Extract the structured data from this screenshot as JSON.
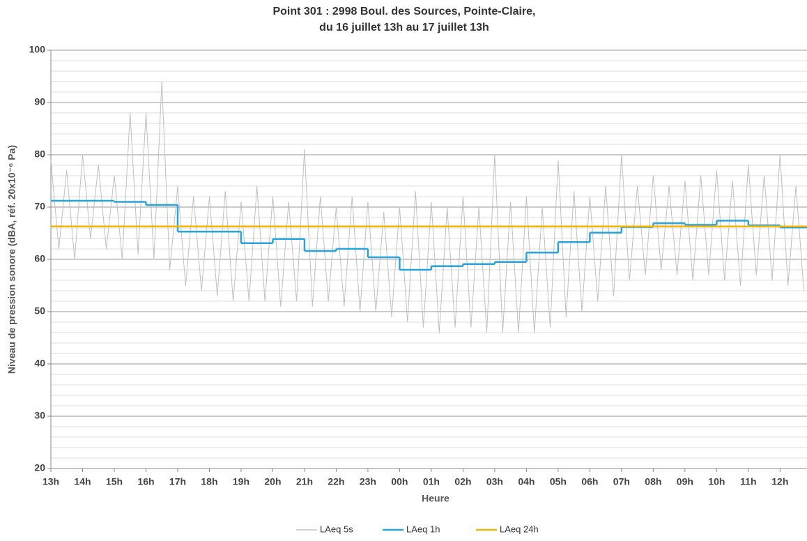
{
  "chart_data": {
    "type": "line",
    "title": "Point 301 : 2998 Boul. des Sources, Pointe-Claire,",
    "subtitle": "du 16 juillet 13h au 17 juillet 13h",
    "x_label": "Heure",
    "y_label": "Niveau de pression sonore (dBA, réf. 20x10⁻⁶ Pa)",
    "xlim": [
      0,
      23.85
    ],
    "xticks": [
      {
        "value": 0,
        "label": "13h"
      },
      {
        "value": 1,
        "label": "14h"
      },
      {
        "value": 2,
        "label": "15h"
      },
      {
        "value": 3,
        "label": "16h"
      },
      {
        "value": 4,
        "label": "17h"
      },
      {
        "value": 5,
        "label": "18h"
      },
      {
        "value": 6,
        "label": "19h"
      },
      {
        "value": 7,
        "label": "20h"
      },
      {
        "value": 8,
        "label": "21h"
      },
      {
        "value": 9,
        "label": "22h"
      },
      {
        "value": 10,
        "label": "23h"
      },
      {
        "value": 11,
        "label": "00h"
      },
      {
        "value": 12,
        "label": "01h"
      },
      {
        "value": 13,
        "label": "02h"
      },
      {
        "value": 14,
        "label": "03h"
      },
      {
        "value": 15,
        "label": "04h"
      },
      {
        "value": 16,
        "label": "05h"
      },
      {
        "value": 17,
        "label": "06h"
      },
      {
        "value": 18,
        "label": "07h"
      },
      {
        "value": 19,
        "label": "08h"
      },
      {
        "value": 20,
        "label": "09h"
      },
      {
        "value": 21,
        "label": "10h"
      },
      {
        "value": 22,
        "label": "11h"
      },
      {
        "value": 23,
        "label": "12h"
      }
    ],
    "ylim": [
      20,
      100
    ],
    "yticks": [
      20,
      30,
      40,
      50,
      60,
      70,
      80,
      90,
      100
    ],
    "yminor": [
      22,
      24,
      26,
      28,
      32,
      34,
      36,
      38,
      42,
      44,
      46,
      48,
      52,
      54,
      56,
      58,
      62,
      64,
      66,
      68,
      72,
      74,
      76,
      78,
      82,
      84,
      86,
      88,
      92,
      94,
      96,
      98
    ],
    "grid": true,
    "legend": "bottom",
    "series": [
      {
        "name": "LAeq 5s",
        "color": "#c0c0c0",
        "step": false,
        "x": [
          0,
          0.25,
          0.5,
          0.75,
          1,
          1.25,
          1.5,
          1.75,
          2,
          2.25,
          2.5,
          2.75,
          3,
          3.25,
          3.5,
          3.75,
          4,
          4.25,
          4.5,
          4.75,
          5,
          5.25,
          5.5,
          5.75,
          6,
          6.25,
          6.5,
          6.75,
          7,
          7.25,
          7.5,
          7.75,
          8,
          8.25,
          8.5,
          8.75,
          9,
          9.25,
          9.5,
          9.75,
          10,
          10.25,
          10.5,
          10.75,
          11,
          11.25,
          11.5,
          11.75,
          12,
          12.25,
          12.5,
          12.75,
          13,
          13.25,
          13.5,
          13.75,
          14,
          14.25,
          14.5,
          14.75,
          15,
          15.25,
          15.5,
          15.75,
          16,
          16.25,
          16.5,
          16.75,
          17,
          17.25,
          17.5,
          17.75,
          18,
          18.25,
          18.5,
          18.75,
          19,
          19.25,
          19.5,
          19.75,
          20,
          20.25,
          20.5,
          20.75,
          21,
          21.25,
          21.5,
          21.75,
          22,
          22.25,
          22.5,
          22.75,
          23,
          23.25,
          23.5,
          23.75
        ],
        "values": [
          79,
          62,
          77,
          60,
          80,
          64,
          78,
          62,
          76,
          60,
          88,
          61,
          88,
          60,
          94,
          58,
          74,
          55,
          72,
          54,
          72,
          53,
          73,
          52,
          71,
          52,
          74,
          52,
          72,
          51,
          71,
          52,
          81,
          51,
          72,
          52,
          70,
          51,
          72,
          50,
          71,
          50,
          69,
          49,
          70,
          48,
          73,
          47,
          71,
          46,
          70,
          47,
          72,
          47,
          70,
          46,
          80,
          46,
          71,
          46,
          72,
          46,
          70,
          47,
          79,
          49,
          73,
          50,
          72,
          52,
          74,
          53,
          80,
          56,
          74,
          57,
          76,
          58,
          74,
          57,
          75,
          56,
          76,
          57,
          77,
          56,
          75,
          55,
          78,
          57,
          76,
          56,
          80,
          55,
          74,
          54
        ]
      },
      {
        "name": "LAeq 1h",
        "color": "#29a3dc",
        "step": true,
        "x": [
          0,
          1,
          2,
          3,
          4,
          5,
          6,
          7,
          8,
          9,
          10,
          11,
          12,
          13,
          14,
          15,
          16,
          17,
          18,
          19,
          20,
          21,
          22,
          23
        ],
        "values": [
          71.2,
          71.2,
          71.0,
          70.4,
          65.3,
          65.3,
          63.1,
          63.9,
          61.6,
          62.0,
          60.4,
          58.0,
          58.7,
          59.1,
          59.5,
          61.3,
          63.3,
          65.1,
          66.2,
          66.9,
          66.6,
          67.4,
          66.5,
          66.1
        ]
      },
      {
        "name": "LAeq 24h",
        "color": "#f2b705",
        "step": false,
        "x": [
          0,
          23.85
        ],
        "values": [
          66.3,
          66.3
        ]
      }
    ]
  }
}
